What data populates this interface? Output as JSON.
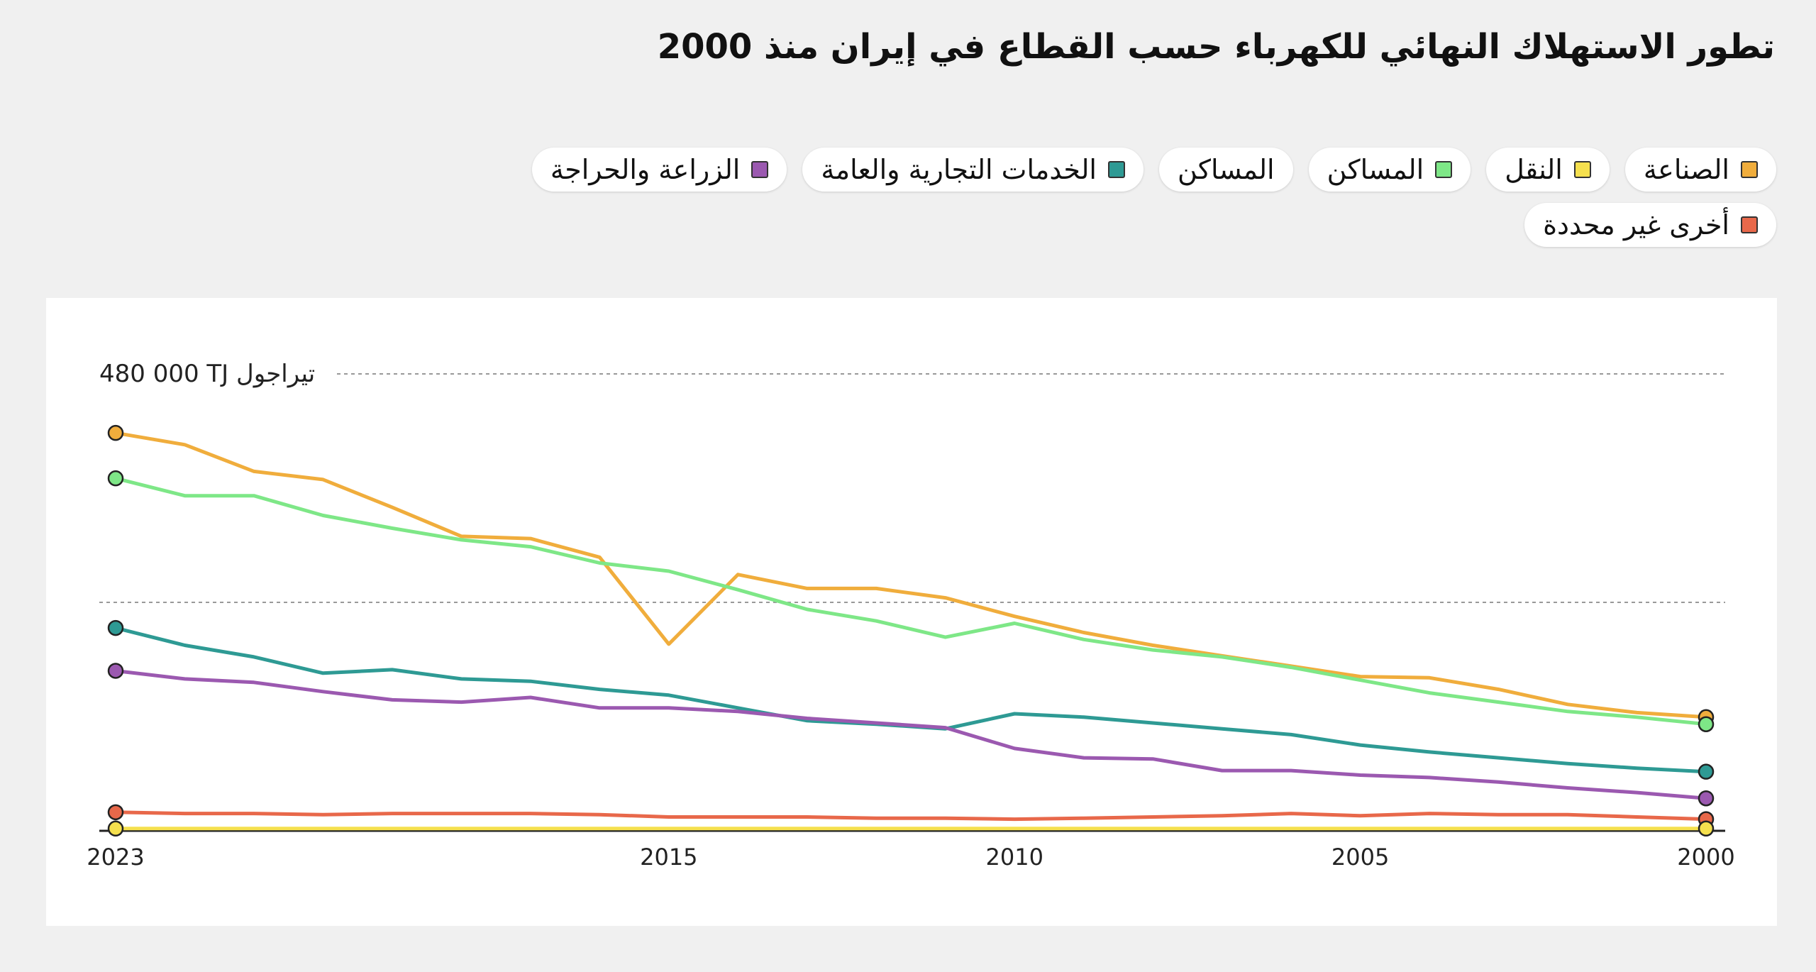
{
  "title": "تطور الاستهلاك النهائي للكهرباء حسب القطاع في إيران منذ 2000",
  "legend": [
    {
      "label": "الصناعة",
      "color": "#f0ad3c"
    },
    {
      "label": "النقل",
      "color": "#f5e04e"
    },
    {
      "label": "المساكن",
      "color": "#7ee787"
    },
    {
      "label": "المساكن",
      "color": null
    },
    {
      "label": "الخدمات التجارية والعامة",
      "color": "#2e9a94"
    },
    {
      "label": "الزراعة والحراجة",
      "color": "#9b59b0"
    },
    {
      "label": "أخرى غير محددة",
      "color": "#e8684a"
    }
  ],
  "chart_data": {
    "type": "line",
    "title": "تطور الاستهلاك النهائي للكهرباء حسب القطاع في إيران منذ 2000",
    "x_axis_reversed": true,
    "x": [
      2000,
      2001,
      2002,
      2003,
      2004,
      2005,
      2006,
      2007,
      2008,
      2009,
      2010,
      2011,
      2012,
      2013,
      2014,
      2015,
      2016,
      2017,
      2018,
      2019,
      2020,
      2021,
      2022,
      2023
    ],
    "x_ticks": [
      "2023",
      "2015",
      "2010",
      "2005",
      "2000"
    ],
    "x_tick_values": [
      2023,
      2015,
      2010,
      2005,
      2000
    ],
    "ylim": [
      0,
      480000
    ],
    "y_gridlines": [
      240000,
      480000
    ],
    "y_top_label": "480 000 TJ تيراجول",
    "grid": true,
    "series": [
      {
        "name": "الصناعة",
        "color": "#f0ad3c",
        "values": [
          119400,
          124200,
          132800,
          148600,
          160800,
          162000,
          173000,
          183900,
          194900,
          208300,
          225300,
          244800,
          254600,
          254600,
          269200,
          196100,
          287400,
          307000,
          309400,
          339800,
          369000,
          377600,
          405600,
          418000
        ]
      },
      {
        "name": "المساكن",
        "color": "#7ee787",
        "values": [
          112000,
          119400,
          125400,
          135200,
          144900,
          158300,
          171700,
          182700,
          190000,
          201000,
          218000,
          203400,
          220500,
          232600,
          253300,
          272800,
          281400,
          298400,
          305700,
          317900,
          331300,
          352000,
          352000,
          370300
        ]
      },
      {
        "name": "الخدمات التجارية والعامة",
        "color": "#2e9a94",
        "values": [
          62100,
          65800,
          70600,
          76700,
          82800,
          90100,
          101100,
          107200,
          113300,
          119400,
          123000,
          107200,
          112000,
          115700,
          129100,
          142500,
          148600,
          157100,
          159600,
          169300,
          165600,
          182700,
          194900,
          213100
        ]
      },
      {
        "name": "الزراعة والحراجة",
        "color": "#9b59b0",
        "values": [
          34100,
          40200,
          45100,
          51200,
          56000,
          58500,
          63300,
          63300,
          75500,
          76700,
          86500,
          108400,
          113300,
          118100,
          125400,
          129100,
          129100,
          140100,
          135200,
          137600,
          146200,
          155900,
          159600,
          168100
        ]
      },
      {
        "name": "أخرى غير محددة",
        "color": "#e8684a",
        "values": [
          12200,
          14500,
          17000,
          17000,
          18200,
          15800,
          18200,
          15800,
          14500,
          13300,
          12200,
          13300,
          13300,
          14500,
          14500,
          14500,
          17000,
          18200,
          18200,
          18200,
          17000,
          18200,
          18200,
          19500
        ]
      },
      {
        "name": "النقل",
        "color": "#f5e04e",
        "values": [
          2400,
          2400,
          2400,
          2400,
          2400,
          2400,
          2400,
          2400,
          2400,
          2400,
          2400,
          2400,
          2400,
          2400,
          2400,
          2400,
          2400,
          2400,
          2400,
          2400,
          2400,
          2400,
          2400,
          2400
        ]
      }
    ]
  }
}
